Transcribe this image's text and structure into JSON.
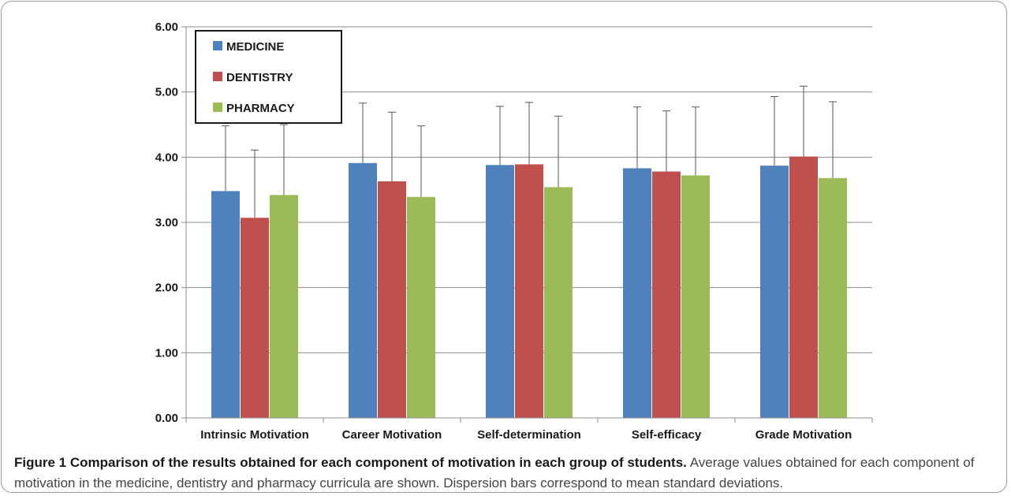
{
  "chart_data": {
    "type": "bar",
    "title": "",
    "xlabel": "",
    "ylabel": "",
    "ylim": [
      0,
      6
    ],
    "yticks": [
      "0.00",
      "1.00",
      "2.00",
      "3.00",
      "4.00",
      "5.00",
      "6.00"
    ],
    "grid": true,
    "legend_position": "top-left",
    "error_bars": true,
    "categories": [
      "Intrinsic Motivation",
      "Career Motivation",
      "Self-determination",
      "Self-efficacy",
      "Grade Motivation"
    ],
    "series": [
      {
        "name": "MEDICINE",
        "color": "#4f81bd",
        "values": [
          3.48,
          3.91,
          3.88,
          3.83,
          3.87
        ],
        "errors": [
          1.0,
          0.92,
          0.9,
          0.94,
          1.06
        ]
      },
      {
        "name": "DENTISTRY",
        "color": "#c0504d",
        "values": [
          3.07,
          3.63,
          3.89,
          3.78,
          4.01
        ],
        "errors": [
          1.04,
          1.06,
          0.95,
          0.93,
          1.08
        ]
      },
      {
        "name": "PHARMACY",
        "color": "#9bbb59",
        "values": [
          3.42,
          3.39,
          3.54,
          3.72,
          3.68
        ],
        "errors": [
          1.08,
          1.09,
          1.09,
          1.05,
          1.17
        ]
      }
    ]
  },
  "caption": {
    "title": "Figure 1 Comparison of the results obtained for each component of motivation in each group of students.",
    "text": "Average values obtained for each component of motivation in the medicine, dentistry and pharmacy curricula are shown. Dispersion bars correspond to mean standard deviations."
  }
}
